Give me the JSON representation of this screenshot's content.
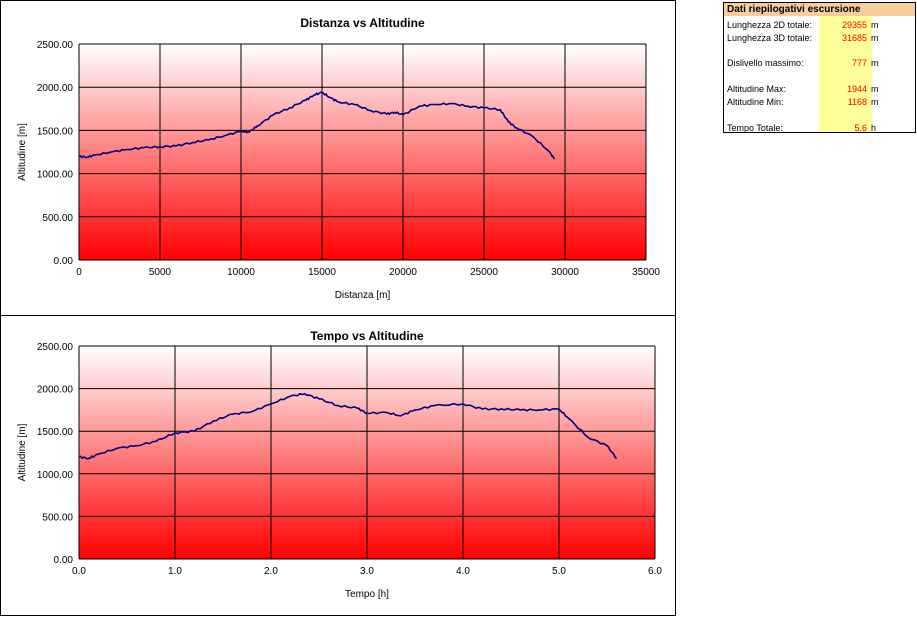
{
  "charts": [
    {
      "id": "top",
      "title": "Distanza vs Altitudine",
      "xlabel": "Distanza [m]",
      "ylabel": "Altitudine [m]",
      "xlim": [
        0,
        35000
      ],
      "ylim": [
        0,
        2500
      ],
      "xticks": [
        "0",
        "5000",
        "10000",
        "15000",
        "20000",
        "25000",
        "30000",
        "35000"
      ],
      "yticks": [
        "0.00",
        "500.00",
        "1000.00",
        "1500.00",
        "2000.00",
        "2500.00"
      ]
    },
    {
      "id": "bottom",
      "title": "Tempo vs Altitudine",
      "xlabel": "Tempo [h]",
      "ylabel": "Altitudine [m]",
      "xlim": [
        0,
        6
      ],
      "ylim": [
        0,
        2500
      ],
      "xticks": [
        "0.0",
        "1.0",
        "2.0",
        "3.0",
        "4.0",
        "5.0",
        "6.0"
      ],
      "yticks": [
        "0.00",
        "500.00",
        "1000.00",
        "1500.00",
        "2000.00",
        "2500.00"
      ]
    }
  ],
  "chart_data": [
    {
      "type": "line",
      "title": "Distanza vs Altitudine",
      "xlabel": "Distanza [m]",
      "ylabel": "Altitudine [m]",
      "xlim": [
        0,
        35000
      ],
      "ylim": [
        0,
        2500
      ],
      "grid": true,
      "series": [
        {
          "color": "#000080",
          "x": [
            0,
            500,
            1000,
            2000,
            3000,
            4000,
            5000,
            6000,
            7000,
            8000,
            9000,
            10000,
            10500,
            11000,
            12000,
            13000,
            14000,
            14500,
            15000,
            15500,
            16000,
            17000,
            18000,
            19000,
            19500,
            20000,
            21000,
            22000,
            23000,
            24000,
            25000,
            26000,
            26500,
            27000,
            28000,
            29000,
            29355
          ],
          "y": [
            1200,
            1190,
            1215,
            1250,
            1280,
            1300,
            1310,
            1320,
            1360,
            1390,
            1440,
            1490,
            1480,
            1550,
            1680,
            1760,
            1850,
            1910,
            1940,
            1880,
            1830,
            1800,
            1730,
            1690,
            1710,
            1680,
            1780,
            1800,
            1810,
            1780,
            1760,
            1740,
            1600,
            1530,
            1430,
            1260,
            1168
          ]
        }
      ]
    },
    {
      "type": "line",
      "title": "Tempo vs Altitudine",
      "xlabel": "Tempo [h]",
      "ylabel": "Altitudine [m]",
      "xlim": [
        0,
        6
      ],
      "ylim": [
        0,
        2500
      ],
      "grid": true,
      "series": [
        {
          "color": "#000080",
          "x": [
            0,
            0.1,
            0.2,
            0.4,
            0.6,
            0.8,
            1.0,
            1.2,
            1.4,
            1.6,
            1.8,
            2.0,
            2.2,
            2.35,
            2.5,
            2.7,
            2.9,
            3.0,
            3.2,
            3.35,
            3.5,
            3.7,
            4.0,
            4.2,
            4.4,
            4.6,
            4.8,
            5.0,
            5.1,
            5.3,
            5.5,
            5.6
          ],
          "y": [
            1200,
            1180,
            1230,
            1300,
            1330,
            1380,
            1480,
            1500,
            1620,
            1700,
            1730,
            1820,
            1910,
            1940,
            1880,
            1800,
            1770,
            1710,
            1720,
            1680,
            1750,
            1800,
            1820,
            1760,
            1760,
            1750,
            1750,
            1760,
            1650,
            1430,
            1330,
            1180
          ]
        }
      ]
    }
  ],
  "summary": {
    "header": "Dati riepilogativi escursione",
    "rows": [
      {
        "label": "Lunghezza 2D totale:",
        "value": "29355",
        "unit": "m"
      },
      {
        "label": "Lunghezza 3D totale:",
        "value": "31685",
        "unit": "m"
      },
      {
        "label": "",
        "value": "",
        "unit": ""
      },
      {
        "label": "Dislivello massimo:",
        "value": "777",
        "unit": "m"
      },
      {
        "label": "",
        "value": "",
        "unit": ""
      },
      {
        "label": "Altitudine Max:",
        "value": "1944",
        "unit": "m"
      },
      {
        "label": "Altitudine Min:",
        "value": "1168",
        "unit": "m"
      },
      {
        "label": "",
        "value": "",
        "unit": ""
      },
      {
        "label": "Tempo Totale:",
        "value": "5.6",
        "unit": "h"
      }
    ]
  }
}
